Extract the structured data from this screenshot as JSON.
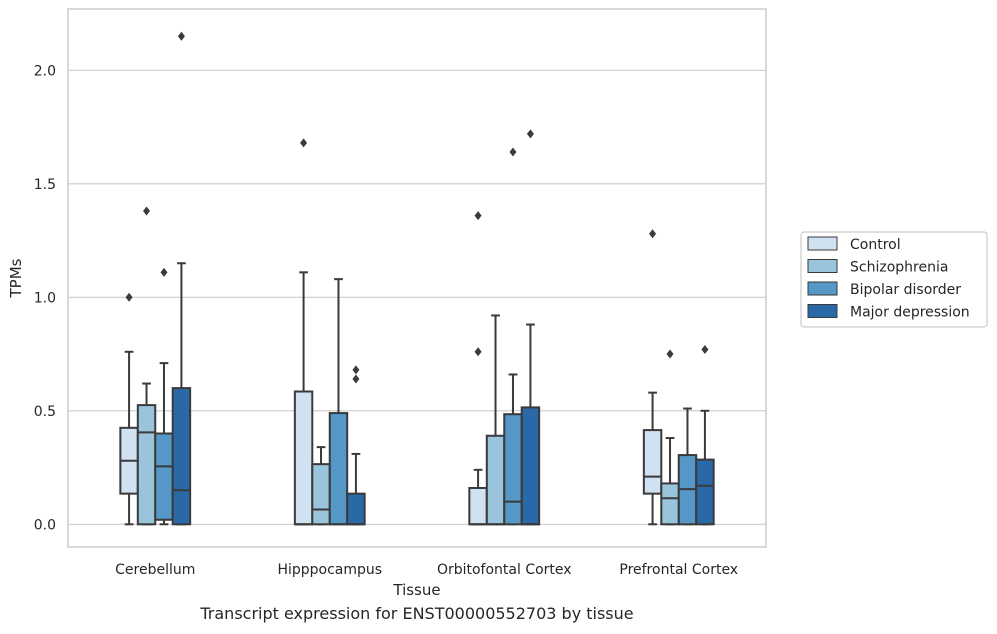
{
  "caption": "Transcript expression for ENST00000552703 by tissue",
  "chart_data": {
    "type": "box",
    "xlabel": "Tissue",
    "ylabel": "TPMs",
    "ylim": [
      -0.1,
      2.27
    ],
    "yticks": [
      0.0,
      0.5,
      1.0,
      1.5,
      2.0
    ],
    "ytick_labels": [
      "0.0",
      "0.5",
      "1.0",
      "1.5",
      "2.0"
    ],
    "grid": "horizontal",
    "legend_position": "right",
    "categories": [
      "Cerebellum",
      "Hipppocampus",
      "Orbitofontal Cortex",
      "Prefrontal Cortex"
    ],
    "series": [
      {
        "name": "Control",
        "color": "#d0e1f2",
        "boxes": [
          {
            "whislo": 0.0,
            "q1": 0.135,
            "med": 0.28,
            "q3": 0.425,
            "whishi": 0.76,
            "fliers": [
              1.0
            ]
          },
          {
            "whislo": 0.0,
            "q1": 0.0,
            "med": 0.0,
            "q3": 0.585,
            "whishi": 1.11,
            "fliers": [
              1.68
            ]
          },
          {
            "whislo": 0.0,
            "q1": 0.0,
            "med": 0.0,
            "q3": 0.16,
            "whishi": 0.24,
            "fliers": [
              0.76,
              1.36
            ]
          },
          {
            "whislo": 0.0,
            "q1": 0.135,
            "med": 0.21,
            "q3": 0.415,
            "whishi": 0.58,
            "fliers": [
              1.28
            ]
          }
        ]
      },
      {
        "name": "Schizophrenia",
        "color": "#9ac3dc",
        "boxes": [
          {
            "whislo": 0.0,
            "q1": 0.0,
            "med": 0.405,
            "q3": 0.525,
            "whishi": 0.62,
            "fliers": [
              1.38
            ]
          },
          {
            "whislo": 0.0,
            "q1": 0.0,
            "med": 0.065,
            "q3": 0.265,
            "whishi": 0.34,
            "fliers": []
          },
          {
            "whislo": 0.0,
            "q1": 0.0,
            "med": 0.0,
            "q3": 0.39,
            "whishi": 0.92,
            "fliers": []
          },
          {
            "whislo": 0.0,
            "q1": 0.0,
            "med": 0.115,
            "q3": 0.18,
            "whishi": 0.38,
            "fliers": [
              0.75
            ]
          }
        ]
      },
      {
        "name": "Bipolar disorder",
        "color": "#5597c6",
        "boxes": [
          {
            "whislo": 0.0,
            "q1": 0.02,
            "med": 0.255,
            "q3": 0.4,
            "whishi": 0.71,
            "fliers": [
              1.11
            ]
          },
          {
            "whislo": 0.0,
            "q1": 0.0,
            "med": 0.0,
            "q3": 0.49,
            "whishi": 1.08,
            "fliers": []
          },
          {
            "whislo": 0.0,
            "q1": 0.0,
            "med": 0.1,
            "q3": 0.485,
            "whishi": 0.66,
            "fliers": [
              1.64
            ]
          },
          {
            "whislo": 0.0,
            "q1": 0.0,
            "med": 0.155,
            "q3": 0.305,
            "whishi": 0.51,
            "fliers": []
          }
        ]
      },
      {
        "name": "Major depression",
        "color": "#2a69a8",
        "boxes": [
          {
            "whislo": 0.0,
            "q1": 0.0,
            "med": 0.15,
            "q3": 0.6,
            "whishi": 1.15,
            "fliers": [
              2.15
            ]
          },
          {
            "whislo": 0.0,
            "q1": 0.0,
            "med": 0.0,
            "q3": 0.135,
            "whishi": 0.31,
            "fliers": [
              0.64,
              0.68
            ]
          },
          {
            "whislo": 0.0,
            "q1": 0.0,
            "med": 0.0,
            "q3": 0.515,
            "whishi": 0.88,
            "fliers": [
              1.72
            ]
          },
          {
            "whislo": 0.0,
            "q1": 0.0,
            "med": 0.17,
            "q3": 0.285,
            "whishi": 0.5,
            "fliers": [
              0.77
            ]
          }
        ]
      }
    ]
  }
}
